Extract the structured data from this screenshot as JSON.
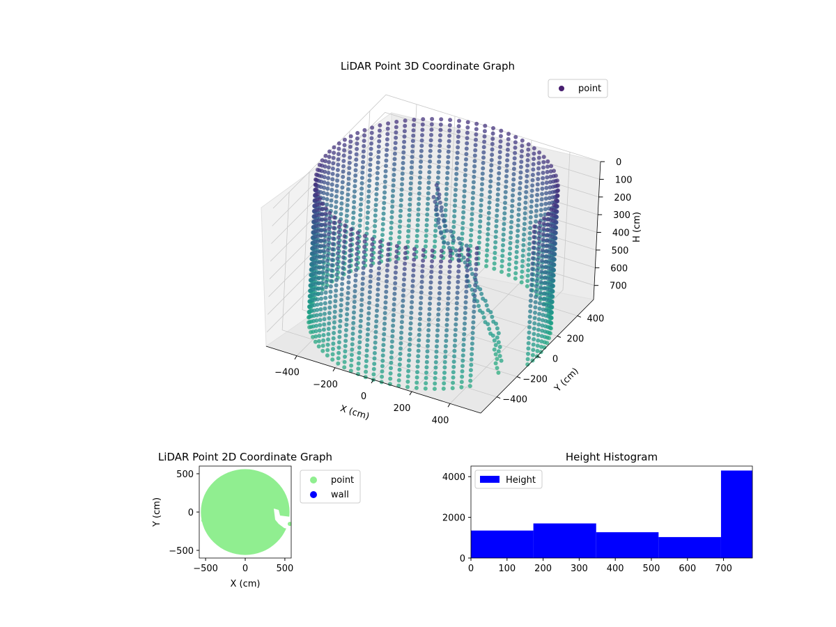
{
  "chart_data": [
    {
      "type": "scatter3d",
      "title": "LiDAR Point 3D Coordinate Graph",
      "xlabel": "X (cm)",
      "ylabel": "Y (cm)",
      "zlabel": "H (cm)",
      "x_ticks": [
        "−400",
        "−200",
        "0",
        "200",
        "400"
      ],
      "y_ticks": [
        "−400",
        "−200",
        "0",
        "200",
        "400"
      ],
      "z_ticks": [
        "0",
        "100",
        "200",
        "300",
        "400",
        "500",
        "600",
        "700"
      ],
      "xlim": [
        -560,
        560
      ],
      "ylim": [
        -560,
        560
      ],
      "zlim": [
        0,
        780
      ],
      "z_inverted": true,
      "legend": {
        "label": "point",
        "position": "upper-right",
        "color": "#481f70"
      },
      "colormap": "viridis",
      "grid": true,
      "cylinder": {
        "radius": 560,
        "height": 780
      },
      "series": [
        {
          "name": "point",
          "description_points": [
            [
              -60,
              120,
              90
            ],
            [
              -40,
              110,
              150
            ],
            [
              -20,
              100,
              210
            ],
            [
              0,
              95,
              260
            ],
            [
              40,
              90,
              300
            ],
            [
              80,
              95,
              330
            ],
            [
              120,
              100,
              360
            ],
            [
              160,
              60,
              430
            ],
            [
              200,
              40,
              480
            ],
            [
              240,
              20,
              520
            ],
            [
              280,
              0,
              560
            ],
            [
              320,
              -20,
              600
            ],
            [
              360,
              -40,
              640
            ],
            [
              380,
              -60,
              700
            ],
            [
              420,
              -120,
              730
            ]
          ]
        }
      ]
    },
    {
      "type": "scatter",
      "title": "LiDAR Point 2D Coordinate Graph",
      "xlabel": "X (cm)",
      "ylabel": "Y (cm)",
      "x_ticks": [
        "−500",
        "0",
        "500"
      ],
      "y_ticks": [
        "500",
        "0",
        "−500"
      ],
      "xlim": [
        -580,
        580
      ],
      "ylim": [
        -600,
        600
      ],
      "grid": false,
      "legend_position": "outside-right",
      "series": [
        {
          "name": "point",
          "color": "#90ee90",
          "shape": "disc",
          "radius": 560
        },
        {
          "name": "wall",
          "color": "#0000ff"
        }
      ]
    },
    {
      "type": "bar",
      "title": "Height Histogram",
      "legend": {
        "label": "Height",
        "position": "upper-left",
        "color": "#0000ff"
      },
      "x_ticks": [
        "0",
        "100",
        "200",
        "300",
        "400",
        "500",
        "600",
        "700"
      ],
      "y_ticks": [
        "0",
        "2000",
        "4000"
      ],
      "xlim": [
        0,
        780
      ],
      "ylim": [
        0,
        4520
      ],
      "bin_edges": [
        0,
        173,
        347,
        520,
        693,
        780
      ],
      "counts": [
        1350,
        1700,
        1270,
        1030,
        4300
      ],
      "color": "#0000ff",
      "grid": false
    }
  ]
}
